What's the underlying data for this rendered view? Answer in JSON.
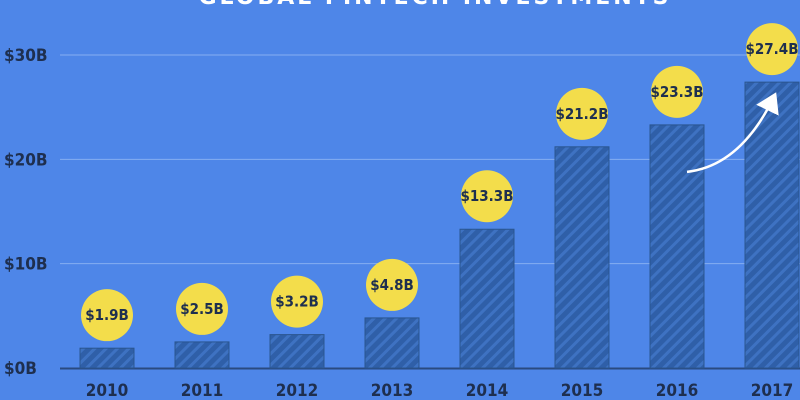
{
  "chart_data": {
    "type": "bar",
    "title": "GLOBAL FINTECH INVESTMENTS",
    "categories": [
      "2010",
      "2011",
      "2012",
      "2013",
      "2014",
      "2015",
      "2016",
      "2017"
    ],
    "values": [
      1.9,
      2.5,
      3.2,
      4.8,
      13.3,
      21.2,
      23.3,
      27.4
    ],
    "data_labels": [
      "$1.9B",
      "$2.5B",
      "$3.2B",
      "$4.8B",
      "$13.3B",
      "$21.2B",
      "$23.3B",
      "$27.4B"
    ],
    "yticks": [
      0,
      10,
      20,
      30
    ],
    "ytick_labels": [
      "$0B",
      "$10B",
      "$20B",
      "$30B"
    ],
    "ylim": [
      0,
      30
    ],
    "xlabel": "",
    "ylabel": "",
    "grid": true,
    "annotation": "trend-arrow"
  },
  "colors": {
    "background": "#4e86e8",
    "bar": "#2f5fa8",
    "bar_stripe": "#3e72c2",
    "label_bubble": "#f3dd4b",
    "text_dark": "#1e2f4f",
    "grid": "#86aef2",
    "arrow": "#ffffff"
  }
}
